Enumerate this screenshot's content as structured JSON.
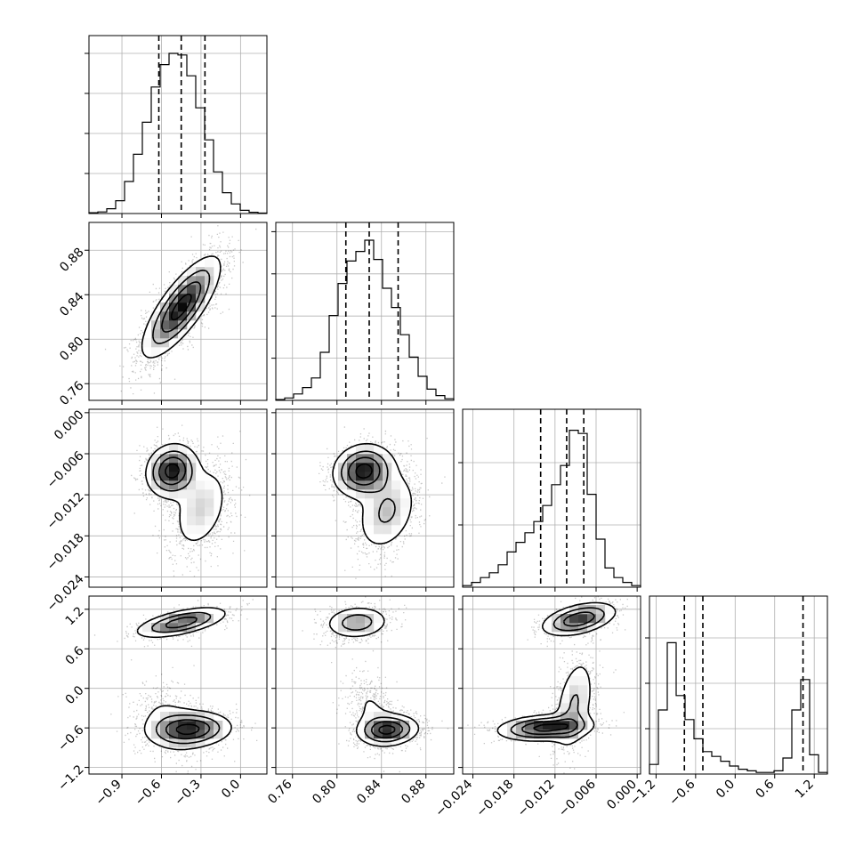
{
  "chart_data": {
    "type": "corner",
    "parameters": [
      {
        "range": [
          -1.15,
          0.2
        ],
        "ticks": [
          -0.9,
          -0.6,
          -0.3,
          0.0
        ],
        "tick_labels": [
          "−0.9",
          "−0.6",
          "−0.3",
          "0.0"
        ],
        "quantiles": [
          -0.62,
          -0.45,
          -0.27
        ]
      },
      {
        "range": [
          0.745,
          0.905
        ],
        "ticks": [
          0.76,
          0.8,
          0.84,
          0.88
        ],
        "tick_labels": [
          "0.76",
          "0.80",
          "0.84",
          "0.88"
        ],
        "quantiles": [
          0.808,
          0.829,
          0.855
        ]
      },
      {
        "range": [
          -0.0255,
          0.0005
        ],
        "ticks": [
          -0.024,
          -0.018,
          -0.012,
          -0.006,
          0.0
        ],
        "tick_labels": [
          "−0.024",
          "−0.018",
          "−0.012",
          "−0.006",
          "0.000"
        ],
        "quantiles": [
          -0.0141,
          -0.0103,
          -0.0078
        ]
      },
      {
        "range": [
          -1.3,
          1.4
        ],
        "ticks": [
          -1.2,
          -0.6,
          0.0,
          0.6,
          1.2
        ],
        "tick_labels": [
          "−1.2",
          "−0.6",
          "0.0",
          "0.6",
          "1.2"
        ],
        "quantiles": [
          -0.77,
          -0.49,
          1.03
        ]
      }
    ],
    "histograms": [
      [
        0.005,
        0.01,
        0.03,
        0.08,
        0.2,
        0.37,
        0.57,
        0.79,
        0.93,
        1.0,
        0.99,
        0.86,
        0.66,
        0.46,
        0.26,
        0.13,
        0.06,
        0.02,
        0.008,
        0.003
      ],
      [
        0.005,
        0.015,
        0.04,
        0.08,
        0.14,
        0.3,
        0.53,
        0.73,
        0.87,
        0.93,
        1.0,
        0.88,
        0.7,
        0.58,
        0.41,
        0.27,
        0.15,
        0.07,
        0.03,
        0.01
      ],
      [
        0.01,
        0.03,
        0.06,
        0.09,
        0.14,
        0.22,
        0.28,
        0.34,
        0.41,
        0.51,
        0.64,
        0.76,
        0.98,
        0.96,
        0.58,
        0.3,
        0.12,
        0.06,
        0.03,
        0.01
      ],
      [
        0.06,
        0.4,
        0.82,
        0.49,
        0.34,
        0.22,
        0.14,
        0.11,
        0.08,
        0.05,
        0.03,
        0.02,
        0.01,
        0.01,
        0.02,
        0.1,
        0.4,
        0.59,
        0.12,
        0.01
      ]
    ],
    "hist_ticks": [
      [
        1,
        2,
        3,
        4
      ],
      [
        1,
        2,
        3,
        4
      ],
      [
        1,
        2
      ],
      [
        1,
        2,
        3
      ]
    ],
    "hist_tick_scale": [
      0.225,
      0.237,
      0.35,
      0.255
    ],
    "pairs": [
      {
        "i": 1,
        "j": 0,
        "components": [
          {
            "mean": [
              -0.45,
              0.829
            ],
            "sd": [
              0.15,
              0.023
            ],
            "rho": 0.78,
            "w": 1.0
          }
        ]
      },
      {
        "i": 2,
        "j": 0,
        "components": [
          {
            "mean": [
              -0.52,
              -0.0085
            ],
            "sd": [
              0.1,
              0.002
            ],
            "rho": 0.1,
            "w": 0.6
          },
          {
            "mean": [
              -0.3,
              -0.014
            ],
            "sd": [
              0.12,
              0.0035
            ],
            "rho": 0.35,
            "w": 0.4
          }
        ]
      },
      {
        "i": 2,
        "j": 1,
        "components": [
          {
            "mean": [
              0.824,
              -0.0085
            ],
            "sd": [
              0.014,
              0.002
            ],
            "rho": 0.1,
            "w": 0.6
          },
          {
            "mean": [
              0.845,
              -0.0145
            ],
            "sd": [
              0.015,
              0.0032
            ],
            "rho": 0.3,
            "w": 0.4
          }
        ]
      },
      {
        "i": 3,
        "j": 0,
        "components": [
          {
            "mean": [
              -0.45,
              1.0
            ],
            "sd": [
              0.18,
              0.12
            ],
            "rho": 0.6,
            "w": 0.33
          },
          {
            "mean": [
              -0.38,
              -0.62
            ],
            "sd": [
              0.16,
              0.14
            ],
            "rho": 0.1,
            "w": 0.5
          },
          {
            "mean": [
              -0.55,
              -0.5
            ],
            "sd": [
              0.14,
              0.3
            ],
            "rho": -0.3,
            "w": 0.17
          }
        ]
      },
      {
        "i": 3,
        "j": 1,
        "components": [
          {
            "mean": [
              0.818,
              1.0
            ],
            "sd": [
              0.015,
              0.13
            ],
            "rho": 0.1,
            "w": 0.33
          },
          {
            "mean": [
              0.846,
              -0.63
            ],
            "sd": [
              0.014,
              0.12
            ],
            "rho": 0.1,
            "w": 0.5
          },
          {
            "mean": [
              0.832,
              -0.35
            ],
            "sd": [
              0.012,
              0.3
            ],
            "rho": -0.4,
            "w": 0.17
          }
        ]
      },
      {
        "i": 3,
        "j": 2,
        "components": [
          {
            "mean": [
              -0.0085,
              1.05
            ],
            "sd": [
              0.0028,
              0.13
            ],
            "rho": 0.45,
            "w": 0.33
          },
          {
            "mean": [
              -0.0135,
              -0.6
            ],
            "sd": [
              0.0035,
              0.1
            ],
            "rho": 0.2,
            "w": 0.4
          },
          {
            "mean": [
              -0.0092,
              -0.25
            ],
            "sd": [
              0.0016,
              0.4
            ],
            "rho": 0.4,
            "w": 0.27
          }
        ]
      }
    ],
    "grid": true
  }
}
